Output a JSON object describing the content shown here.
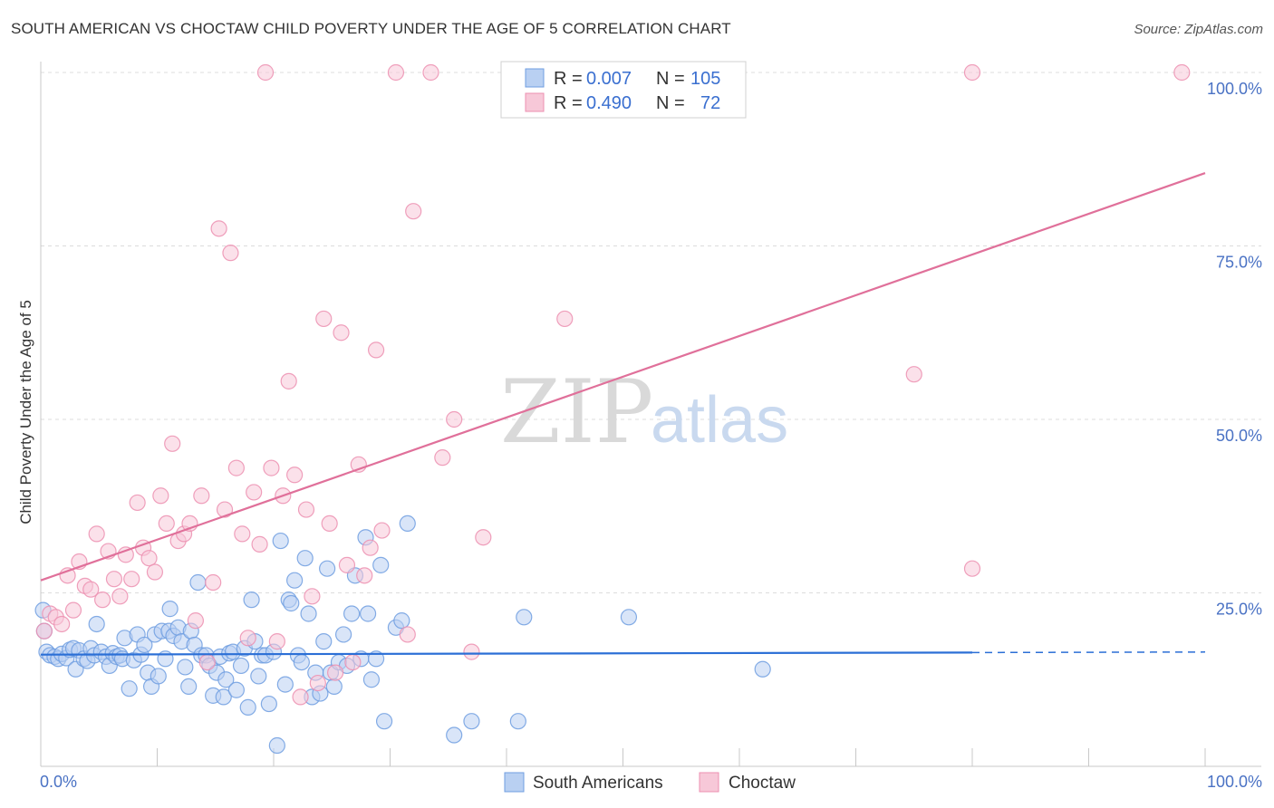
{
  "title": "SOUTH AMERICAN VS CHOCTAW CHILD POVERTY UNDER THE AGE OF 5 CORRELATION CHART",
  "source": "Source: ZipAtlas.com",
  "watermark": {
    "zip": "ZIP",
    "atlas": "atlas"
  },
  "colors": {
    "south_american": "#6f9ee0",
    "south_american_fill": "#b9d0f2",
    "choctaw": "#ec8fb0",
    "choctaw_fill": "#f7c8d8",
    "sa_line": "#2b6fd6",
    "ch_line": "#e0709a",
    "tick": "#4a72c4"
  },
  "legend": {
    "rows": [
      {
        "r_label": "R = ",
        "r_value": "0.007",
        "n_label": "N = ",
        "n_value": "105"
      },
      {
        "r_label": "R = ",
        "r_value": "0.490",
        "n_label": "N = ",
        "n_value": "72"
      }
    ]
  },
  "bottom_legend": [
    "South Americans",
    "Choctaw"
  ],
  "chart_data": {
    "type": "scatter",
    "title": "SOUTH AMERICAN VS CHOCTAW CHILD POVERTY UNDER THE AGE OF 5 CORRELATION CHART",
    "xlabel": "",
    "ylabel": "Child Poverty Under the Age of 5",
    "xlim": [
      0,
      100
    ],
    "ylim": [
      0,
      100
    ],
    "x_tick_labels": [
      "0.0%",
      "100.0%"
    ],
    "y_tick_labels": [
      "25.0%",
      "50.0%",
      "75.0%",
      "100.0%"
    ],
    "y_ticks": [
      25,
      50,
      75,
      100
    ],
    "grid": true,
    "legend_position": "top-center",
    "series": [
      {
        "name": "South Americans",
        "r": 0.007,
        "n": 105,
        "trend": {
          "x": [
            0,
            80
          ],
          "y": [
            16.1,
            16.4
          ],
          "dashed_to": 100
        },
        "points": [
          [
            0.2,
            22.5
          ],
          [
            0.3,
            19.5
          ],
          [
            0.5,
            16.5
          ],
          [
            0.8,
            16.0
          ],
          [
            1.2,
            15.8
          ],
          [
            1.5,
            15.5
          ],
          [
            1.8,
            16.2
          ],
          [
            2.2,
            15.6
          ],
          [
            2.5,
            16.8
          ],
          [
            2.8,
            17.0
          ],
          [
            3.0,
            14.0
          ],
          [
            3.3,
            16.7
          ],
          [
            3.7,
            15.5
          ],
          [
            4.0,
            15.2
          ],
          [
            4.3,
            17.0
          ],
          [
            4.6,
            16.0
          ],
          [
            4.8,
            20.5
          ],
          [
            5.2,
            16.5
          ],
          [
            5.6,
            15.8
          ],
          [
            5.9,
            14.5
          ],
          [
            6.2,
            16.3
          ],
          [
            6.5,
            15.8
          ],
          [
            6.8,
            16.0
          ],
          [
            7.0,
            15.5
          ],
          [
            7.2,
            18.5
          ],
          [
            7.6,
            11.2
          ],
          [
            8.0,
            15.3
          ],
          [
            8.3,
            19.0
          ],
          [
            8.6,
            16.1
          ],
          [
            8.9,
            17.5
          ],
          [
            9.2,
            13.5
          ],
          [
            9.5,
            11.5
          ],
          [
            9.8,
            19.0
          ],
          [
            10.1,
            13.0
          ],
          [
            10.4,
            19.5
          ],
          [
            10.7,
            15.5
          ],
          [
            11.0,
            19.5
          ],
          [
            11.1,
            22.7
          ],
          [
            11.4,
            18.8
          ],
          [
            11.8,
            20.0
          ],
          [
            12.1,
            18.0
          ],
          [
            12.4,
            14.3
          ],
          [
            12.7,
            11.5
          ],
          [
            12.9,
            19.5
          ],
          [
            13.2,
            17.5
          ],
          [
            13.5,
            26.5
          ],
          [
            13.8,
            16.0
          ],
          [
            14.2,
            16.0
          ],
          [
            14.5,
            14.5
          ],
          [
            14.8,
            10.2
          ],
          [
            15.1,
            13.5
          ],
          [
            15.4,
            15.8
          ],
          [
            15.7,
            10.0
          ],
          [
            15.9,
            12.5
          ],
          [
            16.2,
            16.3
          ],
          [
            16.5,
            16.5
          ],
          [
            16.8,
            11.0
          ],
          [
            17.2,
            14.5
          ],
          [
            17.5,
            17.0
          ],
          [
            17.8,
            8.5
          ],
          [
            18.1,
            24.0
          ],
          [
            18.4,
            18.0
          ],
          [
            18.7,
            13.0
          ],
          [
            19.0,
            16.0
          ],
          [
            19.3,
            16.0
          ],
          [
            19.6,
            9.0
          ],
          [
            20.0,
            16.5
          ],
          [
            20.3,
            3.0
          ],
          [
            20.6,
            32.5
          ],
          [
            21.0,
            11.8
          ],
          [
            21.3,
            24.0
          ],
          [
            21.5,
            23.5
          ],
          [
            21.8,
            26.8
          ],
          [
            22.1,
            16.0
          ],
          [
            22.4,
            15.0
          ],
          [
            22.7,
            30.0
          ],
          [
            23.0,
            22.0
          ],
          [
            23.3,
            10.0
          ],
          [
            23.6,
            13.5
          ],
          [
            24.0,
            10.5
          ],
          [
            24.3,
            18.0
          ],
          [
            24.6,
            28.5
          ],
          [
            24.9,
            13.5
          ],
          [
            25.2,
            11.5
          ],
          [
            25.6,
            15.0
          ],
          [
            26.0,
            19.0
          ],
          [
            26.3,
            14.5
          ],
          [
            26.7,
            22.0
          ],
          [
            27.0,
            27.5
          ],
          [
            27.5,
            15.5
          ],
          [
            27.9,
            33.0
          ],
          [
            28.1,
            22.0
          ],
          [
            28.4,
            12.5
          ],
          [
            28.8,
            15.5
          ],
          [
            29.2,
            29.0
          ],
          [
            29.5,
            6.5
          ],
          [
            30.5,
            20.0
          ],
          [
            31.0,
            21.0
          ],
          [
            31.5,
            35.0
          ],
          [
            35.5,
            4.5
          ],
          [
            37.0,
            6.5
          ],
          [
            41.0,
            6.5
          ],
          [
            41.5,
            21.5
          ],
          [
            50.5,
            21.5
          ],
          [
            62.0,
            14.0
          ]
        ]
      },
      {
        "name": "Choctaw",
        "r": 0.49,
        "n": 72,
        "trend": {
          "x": [
            0,
            100
          ],
          "y": [
            26.8,
            85.5
          ]
        },
        "points": [
          [
            0.3,
            19.5
          ],
          [
            0.8,
            22.0
          ],
          [
            1.3,
            21.5
          ],
          [
            1.8,
            20.5
          ],
          [
            2.3,
            27.5
          ],
          [
            2.8,
            22.5
          ],
          [
            3.3,
            29.5
          ],
          [
            3.8,
            26.0
          ],
          [
            4.3,
            25.5
          ],
          [
            4.8,
            33.5
          ],
          [
            5.3,
            24.0
          ],
          [
            5.8,
            31.0
          ],
          [
            6.3,
            27.0
          ],
          [
            6.8,
            24.5
          ],
          [
            7.3,
            30.5
          ],
          [
            7.8,
            27.0
          ],
          [
            8.3,
            38.0
          ],
          [
            8.8,
            31.5
          ],
          [
            9.3,
            30.0
          ],
          [
            9.8,
            28.0
          ],
          [
            10.3,
            39.0
          ],
          [
            10.8,
            35.0
          ],
          [
            11.3,
            46.5
          ],
          [
            11.8,
            32.5
          ],
          [
            12.3,
            33.5
          ],
          [
            12.8,
            35.0
          ],
          [
            13.3,
            21.0
          ],
          [
            13.8,
            39.0
          ],
          [
            14.3,
            15.0
          ],
          [
            14.8,
            26.5
          ],
          [
            15.3,
            77.5
          ],
          [
            15.8,
            37.0
          ],
          [
            16.3,
            74.0
          ],
          [
            16.8,
            43.0
          ],
          [
            17.3,
            33.5
          ],
          [
            17.8,
            18.5
          ],
          [
            18.3,
            39.5
          ],
          [
            18.8,
            32.0
          ],
          [
            19.3,
            100.0
          ],
          [
            19.8,
            43.0
          ],
          [
            20.3,
            18.0
          ],
          [
            20.8,
            39.0
          ],
          [
            21.3,
            55.5
          ],
          [
            21.8,
            42.0
          ],
          [
            22.3,
            10.0
          ],
          [
            22.8,
            37.0
          ],
          [
            23.3,
            24.5
          ],
          [
            23.8,
            12.0
          ],
          [
            24.3,
            64.5
          ],
          [
            24.8,
            35.0
          ],
          [
            25.3,
            13.5
          ],
          [
            25.8,
            62.5
          ],
          [
            26.3,
            29.0
          ],
          [
            26.8,
            15.0
          ],
          [
            27.3,
            43.5
          ],
          [
            27.8,
            27.5
          ],
          [
            28.3,
            31.5
          ],
          [
            28.8,
            60.0
          ],
          [
            29.3,
            34.0
          ],
          [
            30.5,
            100.0
          ],
          [
            31.5,
            19.0
          ],
          [
            32.0,
            80.0
          ],
          [
            33.5,
            100.0
          ],
          [
            34.5,
            44.5
          ],
          [
            35.5,
            50.0
          ],
          [
            37.0,
            16.5
          ],
          [
            38.0,
            33.0
          ],
          [
            45.0,
            64.5
          ],
          [
            75.0,
            56.5
          ],
          [
            80.0,
            28.5
          ],
          [
            80.0,
            100.0
          ],
          [
            98.0,
            100.0
          ]
        ]
      }
    ]
  }
}
